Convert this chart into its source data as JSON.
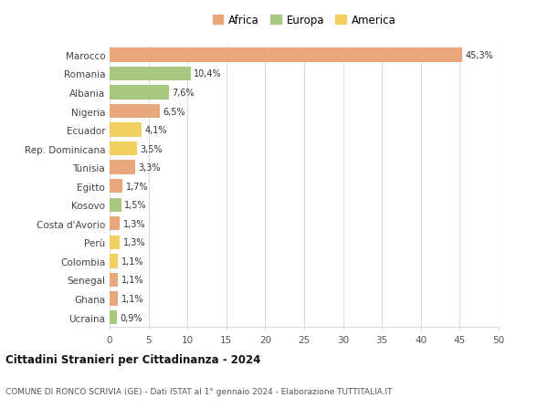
{
  "categories": [
    "Marocco",
    "Romania",
    "Albania",
    "Nigeria",
    "Ecuador",
    "Rep. Dominicana",
    "Tunisia",
    "Egitto",
    "Kosovo",
    "Costa d'Avorio",
    "Perù",
    "Colombia",
    "Senegal",
    "Ghana",
    "Ucraina"
  ],
  "values": [
    45.3,
    10.4,
    7.6,
    6.5,
    4.1,
    3.5,
    3.3,
    1.7,
    1.5,
    1.3,
    1.3,
    1.1,
    1.1,
    1.1,
    0.9
  ],
  "labels": [
    "45,3%",
    "10,4%",
    "7,6%",
    "6,5%",
    "4,1%",
    "3,5%",
    "3,3%",
    "1,7%",
    "1,5%",
    "1,3%",
    "1,3%",
    "1,1%",
    "1,1%",
    "1,1%",
    "0,9%"
  ],
  "continents": [
    "Africa",
    "Europa",
    "Europa",
    "Africa",
    "America",
    "America",
    "Africa",
    "Africa",
    "Europa",
    "Africa",
    "America",
    "America",
    "Africa",
    "Africa",
    "Europa"
  ],
  "colors": {
    "Africa": "#E8A87C",
    "Europa": "#A8C880",
    "America": "#F0D060"
  },
  "xlim": [
    0,
    50
  ],
  "xticks": [
    0,
    5,
    10,
    15,
    20,
    25,
    30,
    35,
    40,
    45,
    50
  ],
  "title": "Cittadini Stranieri per Cittadinanza - 2024",
  "subtitle": "COMUNE DI RONCO SCRIVIA (GE) - Dati ISTAT al 1° gennaio 2024 - Elaborazione TUTTITALIA.IT",
  "background_color": "#ffffff",
  "grid_color": "#dddddd",
  "bar_height": 0.75
}
